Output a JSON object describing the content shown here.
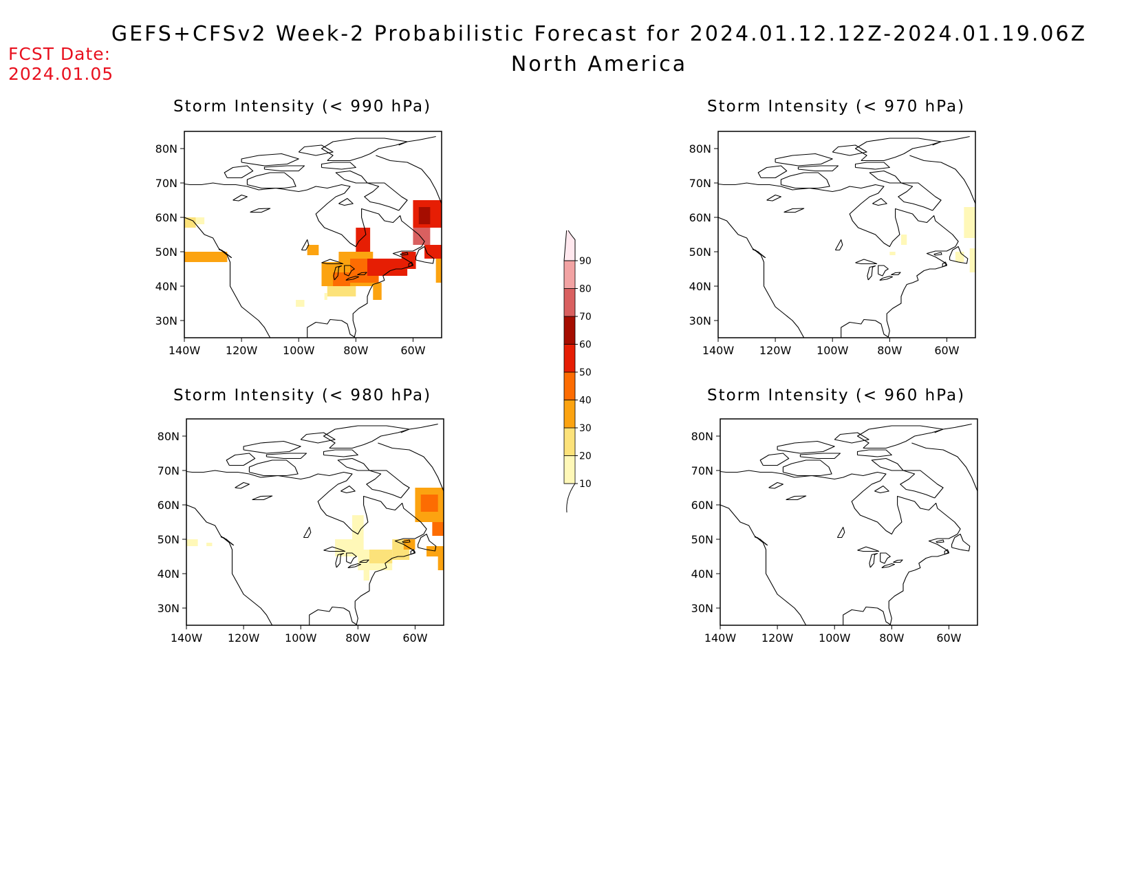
{
  "header": {
    "title_line1": "GEFS+CFSv2 Week-2 Probabilistic Forecast for 2024.01.12.12Z-2024.01.19.06Z",
    "title_line2": "North America",
    "fcst_label": "FCST Date:",
    "fcst_date": "2024.01.05",
    "fcst_color": "#e8101e"
  },
  "axes": {
    "lat_ticks": [
      "30N",
      "40N",
      "50N",
      "60N",
      "70N",
      "80N"
    ],
    "lon_ticks": [
      "140W",
      "120W",
      "100W",
      "80W",
      "60W"
    ],
    "lat_range": [
      25,
      85
    ],
    "lon_range": [
      -140,
      -50
    ]
  },
  "colorbar": {
    "levels": [
      "10",
      "20",
      "30",
      "40",
      "50",
      "60",
      "70",
      "80",
      "90"
    ],
    "colors": [
      "#fff8b8",
      "#fce27a",
      "#fca310",
      "#fd6c02",
      "#e61e04",
      "#a50d00",
      "#d96060",
      "#f2a3a3",
      "#ffe8ee"
    ]
  },
  "panels": [
    {
      "id": "p990",
      "title": "Storm Intensity (< 990 hPa)",
      "cells": [
        {
          "lon": -140,
          "lat": 47,
          "w": 15,
          "h": 3,
          "level": 3
        },
        {
          "lon": -140,
          "lat": 57,
          "w": 4,
          "h": 3,
          "level": 2
        },
        {
          "lon": -136,
          "lat": 58,
          "w": 3,
          "h": 2,
          "level": 1
        },
        {
          "lon": -97,
          "lat": 49,
          "w": 4,
          "h": 3,
          "level": 3
        },
        {
          "lon": -92,
          "lat": 40,
          "w": 18,
          "h": 7,
          "level": 3
        },
        {
          "lon": -86,
          "lat": 47,
          "w": 12,
          "h": 3,
          "level": 3
        },
        {
          "lon": -90,
          "lat": 37,
          "w": 10,
          "h": 3,
          "level": 2
        },
        {
          "lon": -88,
          "lat": 40,
          "w": 6,
          "h": 4,
          "level": 4
        },
        {
          "lon": -82,
          "lat": 41,
          "w": 10,
          "h": 7,
          "level": 4
        },
        {
          "lon": -80,
          "lat": 50,
          "w": 5,
          "h": 7,
          "level": 5
        },
        {
          "lon": -76,
          "lat": 43,
          "w": 14,
          "h": 5,
          "level": 5
        },
        {
          "lon": -74,
          "lat": 36,
          "w": 3,
          "h": 5,
          "level": 3
        },
        {
          "lon": -64,
          "lat": 45,
          "w": 5,
          "h": 5,
          "level": 5
        },
        {
          "lon": -60,
          "lat": 57,
          "w": 10,
          "h": 8,
          "level": 5
        },
        {
          "lon": -58,
          "lat": 58,
          "w": 4,
          "h": 5,
          "level": 6
        },
        {
          "lon": -60,
          "lat": 52,
          "w": 6,
          "h": 5,
          "level": 7
        },
        {
          "lon": -56,
          "lat": 48,
          "w": 6,
          "h": 4,
          "level": 5
        },
        {
          "lon": -52,
          "lat": 41,
          "w": 2,
          "h": 7,
          "level": 3
        },
        {
          "lon": -101,
          "lat": 34,
          "w": 3,
          "h": 2,
          "level": 1
        },
        {
          "lon": -91,
          "lat": 36,
          "w": 1,
          "h": 2,
          "level": 1
        }
      ]
    },
    {
      "id": "p970",
      "title": "Storm Intensity (< 970 hPa)",
      "cells": [
        {
          "lon": -54,
          "lat": 54,
          "w": 7,
          "h": 9,
          "level": 1
        },
        {
          "lon": -52,
          "lat": 44,
          "w": 2,
          "h": 7,
          "level": 1
        },
        {
          "lon": -57,
          "lat": 47,
          "w": 3,
          "h": 3,
          "level": 1
        },
        {
          "lon": -76,
          "lat": 52,
          "w": 2,
          "h": 3,
          "level": 1
        },
        {
          "lon": -80,
          "lat": 49,
          "w": 2,
          "h": 1,
          "level": 1
        }
      ]
    },
    {
      "id": "p980",
      "title": "Storm Intensity (< 980 hPa)",
      "cells": [
        {
          "lon": -140,
          "lat": 48,
          "w": 4,
          "h": 2,
          "level": 1
        },
        {
          "lon": -133,
          "lat": 48,
          "w": 2,
          "h": 1,
          "level": 1
        },
        {
          "lon": -88,
          "lat": 45,
          "w": 10,
          "h": 5,
          "level": 1
        },
        {
          "lon": -82,
          "lat": 50,
          "w": 4,
          "h": 7,
          "level": 1
        },
        {
          "lon": -80,
          "lat": 41,
          "w": 12,
          "h": 6,
          "level": 1
        },
        {
          "lon": -76,
          "lat": 43,
          "w": 8,
          "h": 4,
          "level": 2
        },
        {
          "lon": -68,
          "lat": 44,
          "w": 6,
          "h": 6,
          "level": 2
        },
        {
          "lon": -64,
          "lat": 47,
          "w": 4,
          "h": 3,
          "level": 3
        },
        {
          "lon": -60,
          "lat": 55,
          "w": 10,
          "h": 10,
          "level": 3
        },
        {
          "lon": -58,
          "lat": 58,
          "w": 6,
          "h": 5,
          "level": 4
        },
        {
          "lon": -54,
          "lat": 51,
          "w": 4,
          "h": 4,
          "level": 4
        },
        {
          "lon": -56,
          "lat": 45,
          "w": 6,
          "h": 3,
          "level": 3
        },
        {
          "lon": -52,
          "lat": 41,
          "w": 2,
          "h": 7,
          "level": 3
        },
        {
          "lon": -78,
          "lat": 38,
          "w": 2,
          "h": 3,
          "level": 1
        }
      ]
    },
    {
      "id": "p960",
      "title": "Storm Intensity (< 960 hPa)",
      "cells": []
    }
  ]
}
